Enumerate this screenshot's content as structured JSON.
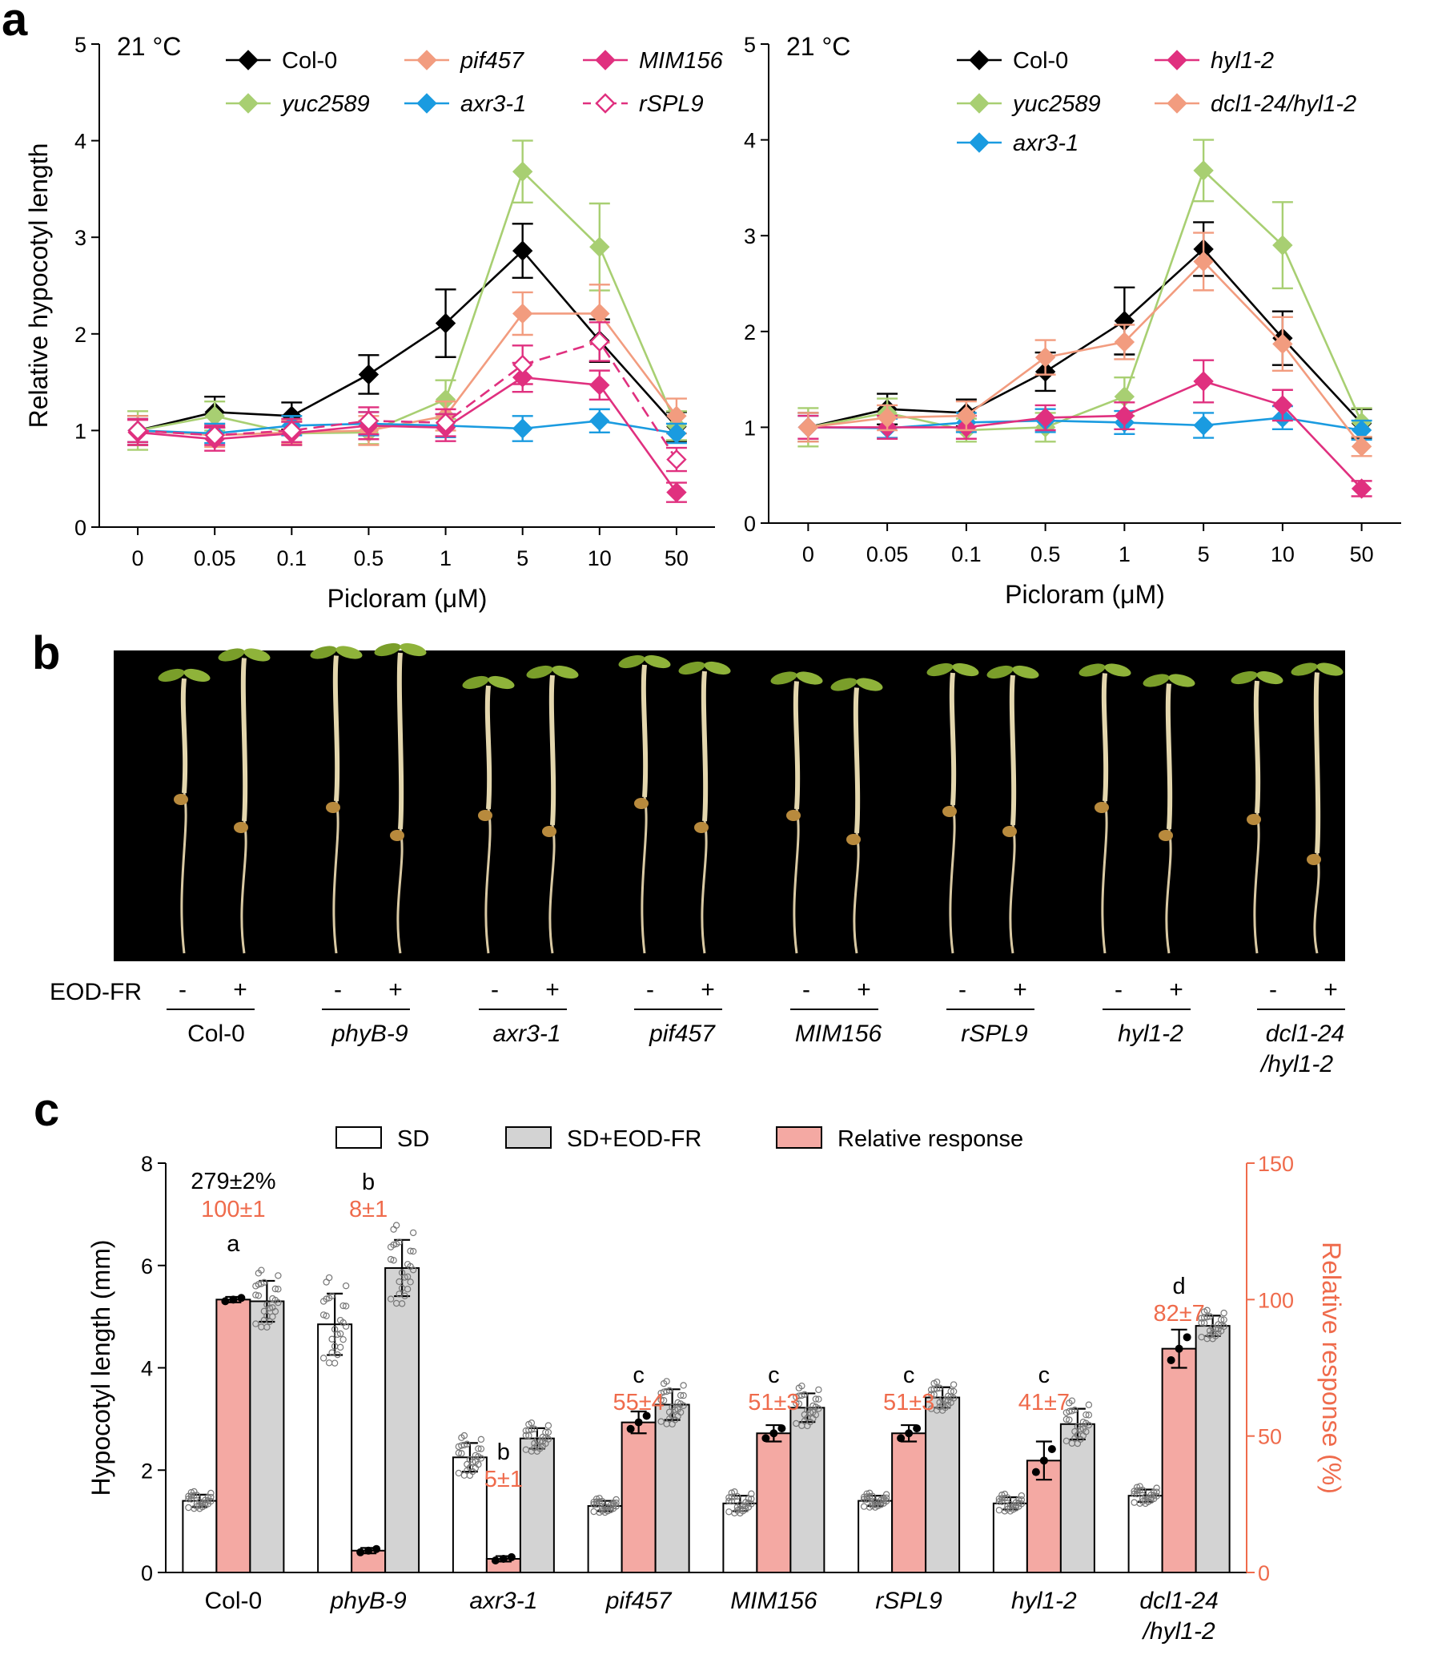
{
  "figure": {
    "panels": [
      "a",
      "b",
      "c"
    ]
  },
  "colors": {
    "Col-0": "#000000",
    "yuc2589": "#a8cf72",
    "pif457": "#f29c7f",
    "axr3-1": "#1a9be0",
    "MIM156": "#e0307f",
    "rSPL9": "#e0307f",
    "hyl1-2": "#e0307f",
    "dcl1-24/hyl1-2": "#f29c7f",
    "relative": "#f4a9a3",
    "relative_text": "#ef6b4c",
    "sd_eod": "#d3d3d3"
  },
  "chart_data": [
    {
      "type": "line",
      "panel": "a-left",
      "temp_label": "21 °C",
      "xlabel": "Picloram (μM)",
      "ylabel": "Relative hypocotyl length",
      "ylim": [
        0,
        5
      ],
      "yticks": [
        "0",
        "1",
        "2",
        "3",
        "4",
        "5"
      ],
      "categories": [
        "0",
        "0.05",
        "0.1",
        "0.5",
        "1",
        "5",
        "10",
        "50"
      ],
      "series": [
        {
          "name": "Col-0",
          "italic": false,
          "marker": "filled",
          "dashed": false,
          "values": [
            1.0,
            1.19,
            1.15,
            1.58,
            2.11,
            2.86,
            1.93,
            1.04
          ],
          "err": [
            0.15,
            0.16,
            0.14,
            0.2,
            0.35,
            0.28,
            0.22,
            0.15
          ]
        },
        {
          "name": "yuc2589",
          "italic": true,
          "marker": "filled",
          "dashed": false,
          "values": [
            1.0,
            1.15,
            0.97,
            0.98,
            1.32,
            3.68,
            2.9,
            1.05
          ],
          "err": [
            0.2,
            0.15,
            0.12,
            0.12,
            0.2,
            0.32,
            0.45,
            0.15
          ]
        },
        {
          "name": "pif457",
          "italic": true,
          "marker": "filled",
          "dashed": false,
          "values": [
            1.0,
            0.95,
            0.98,
            1.0,
            1.15,
            2.21,
            2.21,
            1.15
          ],
          "err": [
            0.15,
            0.12,
            0.12,
            0.15,
            0.15,
            0.22,
            0.3,
            0.18
          ]
        },
        {
          "name": "axr3-1",
          "italic": true,
          "marker": "filled",
          "dashed": false,
          "values": [
            1.0,
            0.97,
            1.05,
            1.07,
            1.05,
            1.02,
            1.1,
            0.97
          ],
          "err": [
            0.12,
            0.1,
            0.1,
            0.12,
            0.12,
            0.13,
            0.12,
            0.1
          ]
        },
        {
          "name": "MIM156",
          "italic": true,
          "marker": "filled",
          "dashed": false,
          "values": [
            0.98,
            0.91,
            0.97,
            1.05,
            1.03,
            1.55,
            1.47,
            0.36
          ],
          "err": [
            0.13,
            0.12,
            0.12,
            0.14,
            0.14,
            0.15,
            0.15,
            0.1
          ]
        },
        {
          "name": "rSPL9",
          "italic": true,
          "marker": "open",
          "dashed": true,
          "values": [
            1.0,
            0.95,
            1.0,
            1.1,
            1.08,
            1.68,
            1.92,
            0.7
          ],
          "err": [
            0.12,
            0.1,
            0.12,
            0.14,
            0.14,
            0.2,
            0.2,
            0.12
          ]
        }
      ],
      "legend": [
        "Col-0",
        "pif457",
        "MIM156",
        "yuc2589",
        "axr3-1",
        "rSPL9"
      ]
    },
    {
      "type": "line",
      "panel": "a-right",
      "temp_label": "21 °C",
      "xlabel": "Picloram (μM)",
      "ylabel": "",
      "ylim": [
        0,
        5
      ],
      "yticks": [
        "0",
        "1",
        "2",
        "3",
        "4",
        "5"
      ],
      "categories": [
        "0",
        "0.05",
        "0.1",
        "0.5",
        "1",
        "5",
        "10",
        "50"
      ],
      "series": [
        {
          "name": "Col-0",
          "italic": false,
          "marker": "filled",
          "dashed": false,
          "values": [
            1.0,
            1.19,
            1.15,
            1.58,
            2.11,
            2.86,
            1.93,
            1.04
          ],
          "err": [
            0.15,
            0.16,
            0.14,
            0.2,
            0.35,
            0.28,
            0.28,
            0.15
          ]
        },
        {
          "name": "yuc2589",
          "italic": true,
          "marker": "filled",
          "dashed": false,
          "values": [
            1.0,
            1.15,
            0.97,
            1.0,
            1.32,
            3.68,
            2.9,
            1.05
          ],
          "err": [
            0.2,
            0.15,
            0.12,
            0.15,
            0.2,
            0.32,
            0.45,
            0.15
          ]
        },
        {
          "name": "axr3-1",
          "italic": true,
          "marker": "filled",
          "dashed": false,
          "values": [
            1.0,
            0.99,
            1.05,
            1.07,
            1.05,
            1.02,
            1.1,
            0.97
          ],
          "err": [
            0.12,
            0.1,
            0.1,
            0.12,
            0.12,
            0.13,
            0.12,
            0.1
          ]
        },
        {
          "name": "hyl1-2",
          "italic": true,
          "marker": "filled",
          "dashed": false,
          "values": [
            1.0,
            1.0,
            1.0,
            1.1,
            1.12,
            1.48,
            1.23,
            0.36
          ],
          "err": [
            0.12,
            0.12,
            0.12,
            0.13,
            0.14,
            0.22,
            0.16,
            0.08
          ]
        },
        {
          "name": "dcl1-24/hyl1-2",
          "italic": true,
          "marker": "filled",
          "dashed": false,
          "values": [
            1.0,
            1.1,
            1.12,
            1.73,
            1.89,
            2.73,
            1.87,
            0.8
          ],
          "err": [
            0.15,
            0.13,
            0.15,
            0.18,
            0.18,
            0.3,
            0.28,
            0.1
          ]
        }
      ],
      "legend": [
        "Col-0",
        "hyl1-2",
        "yuc2589",
        "dcl1-24/hyl1-2",
        "axr3-1"
      ]
    },
    {
      "type": "bar",
      "panel": "c",
      "ylabel": "Hypocotyl length (mm)",
      "y2label": "Relative response (%)",
      "ylim": [
        0,
        8
      ],
      "y2lim": [
        0,
        150
      ],
      "yticks": [
        "0",
        "2",
        "4",
        "6",
        "8"
      ],
      "y2ticks": [
        "0",
        "50",
        "100",
        "150"
      ],
      "legend": [
        "SD",
        "SD+EOD-FR",
        "Relative response"
      ],
      "categories": [
        "Col-0",
        "phyB-9",
        "axr3-1",
        "pif457",
        "MIM156",
        "rSPL9",
        "hyl1-2",
        "dcl1-24 /hyl1-2"
      ],
      "italic": [
        false,
        true,
        true,
        true,
        true,
        true,
        true,
        true
      ],
      "series": [
        {
          "name": "SD",
          "values": [
            1.4,
            4.85,
            2.25,
            1.3,
            1.35,
            1.4,
            1.35,
            1.5
          ],
          "sd": [
            0.12,
            0.6,
            0.28,
            0.1,
            0.15,
            0.1,
            0.12,
            0.12
          ]
        },
        {
          "name": "SD+EOD-FR",
          "values": [
            5.3,
            5.95,
            2.62,
            3.28,
            3.22,
            3.42,
            2.9,
            4.82
          ],
          "sd": [
            0.4,
            0.55,
            0.2,
            0.3,
            0.28,
            0.2,
            0.3,
            0.2
          ]
        },
        {
          "name": "Relative response",
          "axis": "right",
          "values": [
            100,
            8,
            5,
            55,
            51,
            51,
            41,
            82
          ],
          "sd": [
            1,
            1,
            1,
            4,
            3,
            3,
            7,
            7
          ]
        }
      ],
      "letters": [
        "a",
        "b",
        "b",
        "c",
        "c",
        "c",
        "c",
        "d"
      ],
      "rel_labels": [
        "100±1",
        "8±1",
        "5±1",
        "55±4",
        "51±3",
        "51±3",
        "41±7",
        "82±7"
      ],
      "extra_label": "279±2%"
    }
  ],
  "panel_b": {
    "treatment_label": "EOD-FR",
    "minus": "-",
    "plus": "+",
    "genotypes": [
      "Col-0",
      "phyB-9",
      "axr3-1",
      "pif457",
      "MIM156",
      "rSPL9",
      "hyl1-2",
      "dcl1-24",
      "/hyl1-2"
    ],
    "genotype_italic": [
      false,
      true,
      true,
      true,
      true,
      true,
      true,
      true,
      true
    ]
  }
}
